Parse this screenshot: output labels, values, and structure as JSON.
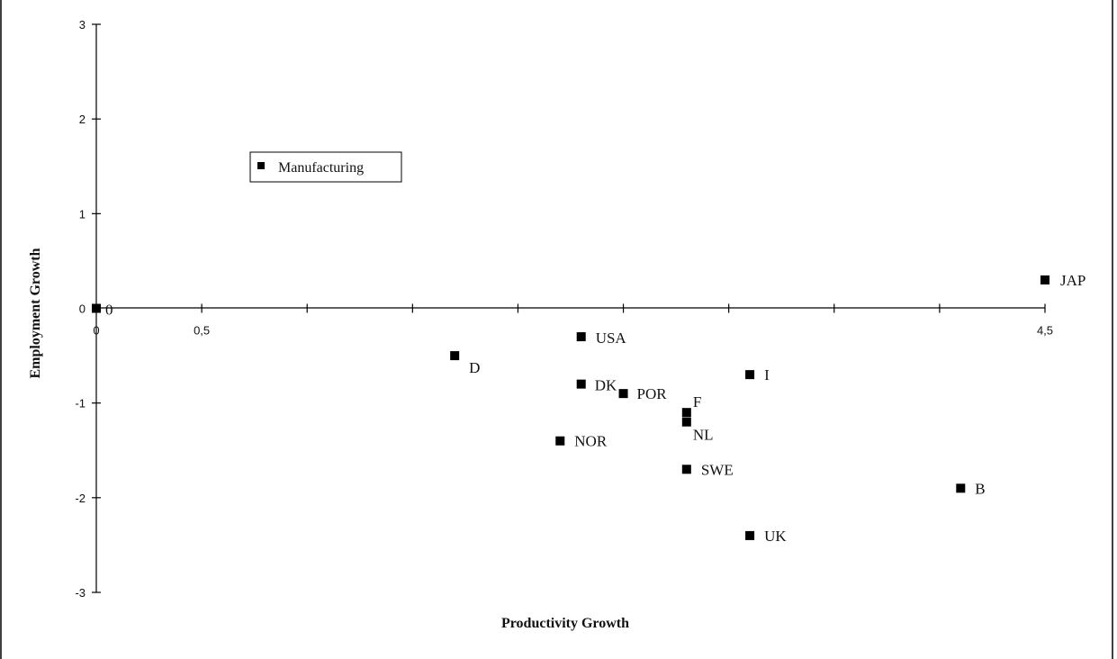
{
  "chart_data": {
    "type": "scatter",
    "xlabel": "Productivity Growth",
    "ylabel": "Employment Growth",
    "xlim": [
      0,
      4.5
    ],
    "ylim": [
      -3,
      3
    ],
    "x_tick_labels": [
      {
        "value": 0,
        "label": "0"
      },
      {
        "value": 0.5,
        "label": "0,5"
      },
      {
        "value": 4.5,
        "label": "4,5"
      }
    ],
    "y_tick_labels": [
      "3",
      "2",
      "1",
      "0",
      "-1",
      "-2",
      "-3"
    ],
    "y_ticks": [
      3,
      2,
      1,
      0,
      -1,
      -2,
      -3
    ],
    "grid": false,
    "legend": {
      "position": "top-left",
      "entries": [
        "Manufacturing"
      ]
    },
    "series": [
      {
        "name": "Manufacturing",
        "points": [
          {
            "label": "0",
            "x": 0.0,
            "y": 0.0
          },
          {
            "label": "JAP",
            "x": 4.5,
            "y": 0.3
          },
          {
            "label": "USA",
            "x": 2.3,
            "y": -0.3
          },
          {
            "label": "D",
            "x": 1.7,
            "y": -0.5
          },
          {
            "label": "I",
            "x": 3.1,
            "y": -0.7
          },
          {
            "label": "DK",
            "x": 2.3,
            "y": -0.8
          },
          {
            "label": "POR",
            "x": 2.5,
            "y": -0.9
          },
          {
            "label": "F",
            "x": 2.8,
            "y": -1.1
          },
          {
            "label": "NL",
            "x": 2.8,
            "y": -1.2
          },
          {
            "label": "NOR",
            "x": 2.2,
            "y": -1.4
          },
          {
            "label": "SWE",
            "x": 2.8,
            "y": -1.7
          },
          {
            "label": "B",
            "x": 4.1,
            "y": -1.9
          },
          {
            "label": "UK",
            "x": 3.1,
            "y": -2.4
          }
        ]
      }
    ]
  }
}
